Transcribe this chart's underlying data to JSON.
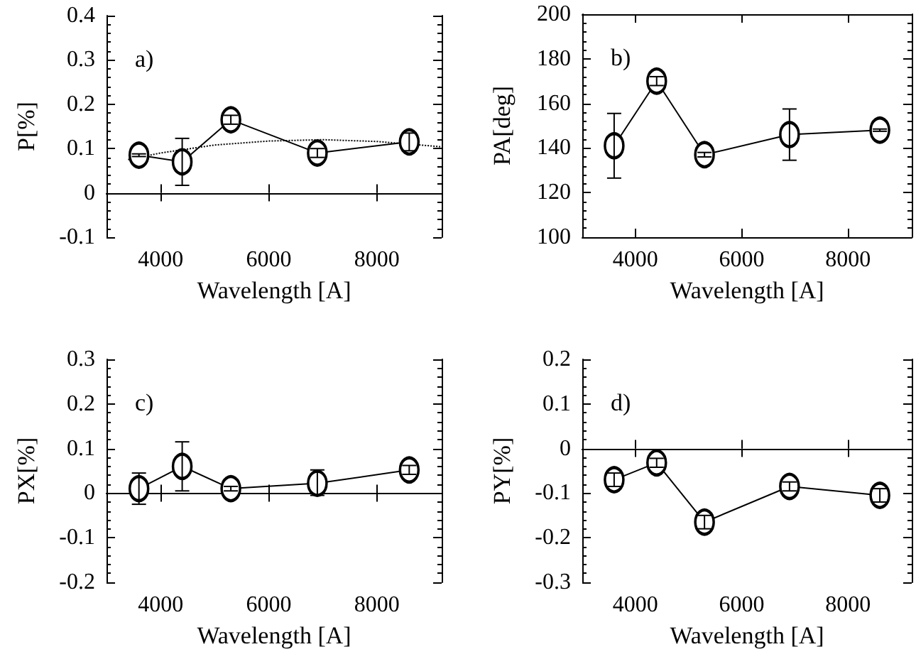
{
  "chart_data": [
    {
      "type": "line",
      "xlabel": "Wavelength [A]",
      "ylabel": "P[%]",
      "annotations": [
        "a)"
      ],
      "xlim": [
        3000,
        9200
      ],
      "xticks": [
        4000,
        6000,
        8000
      ],
      "ylim": [
        -0.1,
        0.4
      ],
      "yticks": [
        -0.1,
        0,
        0.1,
        0.2,
        0.3,
        0.4
      ],
      "marker": "circle",
      "x": [
        3600,
        4400,
        5300,
        6900,
        8600
      ],
      "series": [
        {
          "color": "#000000",
          "values": [
            0.085,
            0.07,
            0.165,
            0.09,
            0.115
          ],
          "errors": [
            0.003,
            0.053,
            0.01,
            0.01,
            0.02
          ]
        },
        {
          "type": "line",
          "color": "#000000",
          "line_style": "dotted",
          "marker": "none",
          "x": [
            3400,
            4000,
            5000,
            6000,
            7000,
            8000,
            9200
          ],
          "values": [
            0.075,
            0.09,
            0.108,
            0.117,
            0.12,
            0.116,
            0.104
          ]
        }
      ]
    },
    {
      "type": "line",
      "xlabel": "Wavelength [A]",
      "ylabel": "PA[deg]",
      "annotations": [
        "b)"
      ],
      "xlim": [
        3000,
        9200
      ],
      "xticks": [
        4000,
        6000,
        8000
      ],
      "ylim": [
        100,
        200
      ],
      "yticks": [
        100,
        120,
        140,
        160,
        180,
        200
      ],
      "marker": "circle",
      "x": [
        3600,
        4400,
        5300,
        6900,
        8600
      ],
      "series": [
        {
          "color": "#000000",
          "values": [
            141,
            170,
            137,
            146,
            148
          ],
          "errors": [
            14.5,
            2,
            1,
            11.5,
            0.5
          ]
        }
      ]
    },
    {
      "type": "line",
      "xlabel": "Wavelength [A]",
      "ylabel": "PX[%]",
      "annotations": [
        "c)"
      ],
      "xlim": [
        3000,
        9200
      ],
      "xticks": [
        4000,
        6000,
        8000
      ],
      "ylim": [
        -0.2,
        0.3
      ],
      "yticks": [
        -0.2,
        -0.1,
        0,
        0.1,
        0.2,
        0.3
      ],
      "marker": "circle",
      "x": [
        3600,
        4400,
        5300,
        6900,
        8600
      ],
      "series": [
        {
          "color": "#000000",
          "values": [
            0.01,
            0.06,
            0.01,
            0.022,
            0.052
          ],
          "errors": [
            [
              -0.025,
              0.045
            ],
            [
              0.005,
              0.115
            ],
            0.005,
            [
              -0.005,
              0.052
            ],
            0.01
          ]
        }
      ]
    },
    {
      "type": "line",
      "xlabel": "Wavelength [A]",
      "ylabel": "PY[%]",
      "annotations": [
        "d)"
      ],
      "xlim": [
        3000,
        9200
      ],
      "xticks": [
        4000,
        6000,
        8000
      ],
      "ylim": [
        -0.3,
        0.2
      ],
      "yticks": [
        -0.3,
        -0.2,
        -0.1,
        0,
        0.1,
        0.2
      ],
      "marker": "circle",
      "x": [
        3600,
        4400,
        5300,
        6900,
        8600
      ],
      "series": [
        {
          "color": "#000000",
          "values": [
            -0.07,
            -0.032,
            -0.165,
            -0.085,
            -0.105
          ],
          "errors": [
            0.015,
            0.01,
            0.015,
            0.01,
            0.015
          ]
        }
      ]
    }
  ]
}
